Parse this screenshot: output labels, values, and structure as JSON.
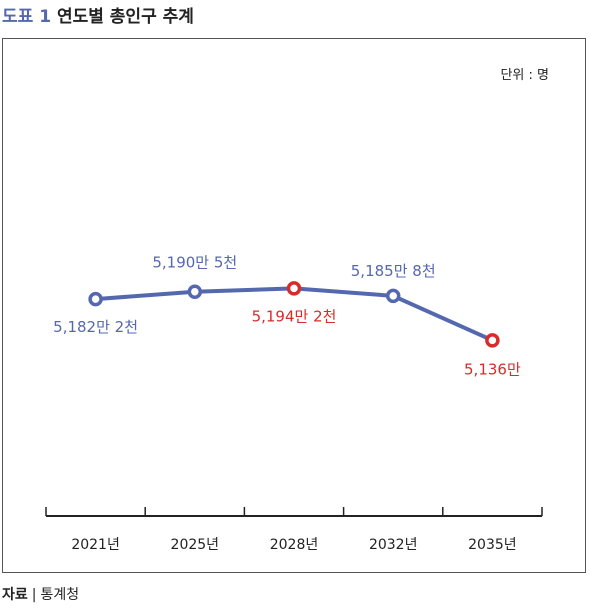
{
  "header": {
    "label": "도표 1",
    "title": "연도별 총인구 추계"
  },
  "unit": "단위 : 명",
  "source": {
    "label": "자료",
    "separator": "|",
    "value": "통계청"
  },
  "colors": {
    "line": "#5468b0",
    "highlight": "#d92b2b",
    "axis": "#222222"
  },
  "chart_data": {
    "type": "line",
    "title": "연도별 총인구 추계",
    "xlabel": "",
    "ylabel": "",
    "unit": "단위 : 명",
    "categories": [
      "2021년",
      "2025년",
      "2028년",
      "2032년",
      "2035년"
    ],
    "series": [
      {
        "values": [
          51822000,
          51905000,
          51942000,
          51858000,
          51360000
        ],
        "labels": [
          "5,182만 2천",
          "5,190만 5천",
          "5,194만 2천",
          "5,185만 8천",
          "5,136만"
        ],
        "highlight": [
          false,
          false,
          true,
          false,
          true
        ]
      }
    ],
    "ylim": [
      51140000,
      51980000
    ],
    "grid": false,
    "legend": "none"
  }
}
